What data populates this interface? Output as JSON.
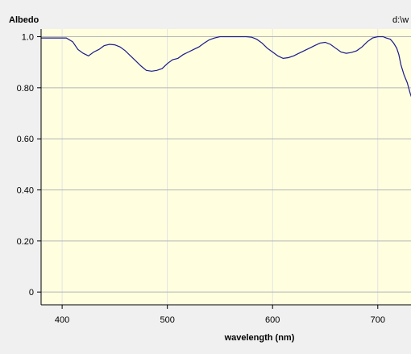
{
  "header": {
    "ylabel": "Albedo",
    "file_path": "d:\\w"
  },
  "colors": {
    "background": "#f0f0f0",
    "plot_area": "#ffffe0",
    "line": "#1a1a8c",
    "grid_horizontal": "#b4b4b4",
    "grid_vertical": "#e2e2e2"
  },
  "chart_data": {
    "type": "line",
    "xlabel": "wavelength (nm)",
    "ylabel": "Albedo",
    "xlim": [
      380,
      740
    ],
    "ylim": [
      -0.05,
      1.03
    ],
    "x_ticks": [
      400,
      500,
      600,
      700
    ],
    "x_tick_labels": [
      "400",
      "500",
      "600",
      "700"
    ],
    "y_ticks": [
      0,
      0.2,
      0.4,
      0.6,
      0.8,
      1.0
    ],
    "y_tick_labels": [
      "0",
      "0.20",
      "0.40",
      "0.60",
      "0.80",
      "1.0"
    ],
    "grid": true,
    "series": [
      {
        "x": [
          380,
          404,
          410,
          415,
          420,
          425,
          430,
          435,
          440,
          445,
          450,
          455,
          460,
          465,
          470,
          475,
          480,
          485,
          490,
          495,
          500,
          505,
          510,
          515,
          520,
          525,
          530,
          535,
          540,
          545,
          550,
          555,
          560,
          565,
          570,
          575,
          580,
          585,
          590,
          595,
          600,
          605,
          610,
          615,
          620,
          625,
          630,
          635,
          640,
          645,
          650,
          655,
          660,
          665,
          670,
          675,
          680,
          685,
          690,
          695,
          700,
          705,
          708,
          712,
          715,
          718,
          720,
          722,
          725,
          728,
          731,
          733,
          736,
          740
        ],
        "values": [
          0.995,
          0.995,
          0.98,
          0.95,
          0.935,
          0.925,
          0.94,
          0.95,
          0.965,
          0.97,
          0.968,
          0.96,
          0.945,
          0.925,
          0.905,
          0.885,
          0.868,
          0.865,
          0.868,
          0.875,
          0.895,
          0.91,
          0.915,
          0.93,
          0.94,
          0.95,
          0.96,
          0.975,
          0.988,
          0.995,
          1.0,
          1.0,
          1.0,
          1.0,
          1.0,
          1.0,
          0.998,
          0.99,
          0.975,
          0.955,
          0.94,
          0.925,
          0.915,
          0.918,
          0.925,
          0.935,
          0.945,
          0.955,
          0.965,
          0.975,
          0.978,
          0.97,
          0.955,
          0.94,
          0.935,
          0.938,
          0.945,
          0.96,
          0.98,
          0.995,
          1.0,
          1.0,
          0.995,
          0.99,
          0.975,
          0.955,
          0.93,
          0.89,
          0.85,
          0.82,
          0.775,
          0.752,
          0.75,
          0.76
        ]
      }
    ]
  }
}
